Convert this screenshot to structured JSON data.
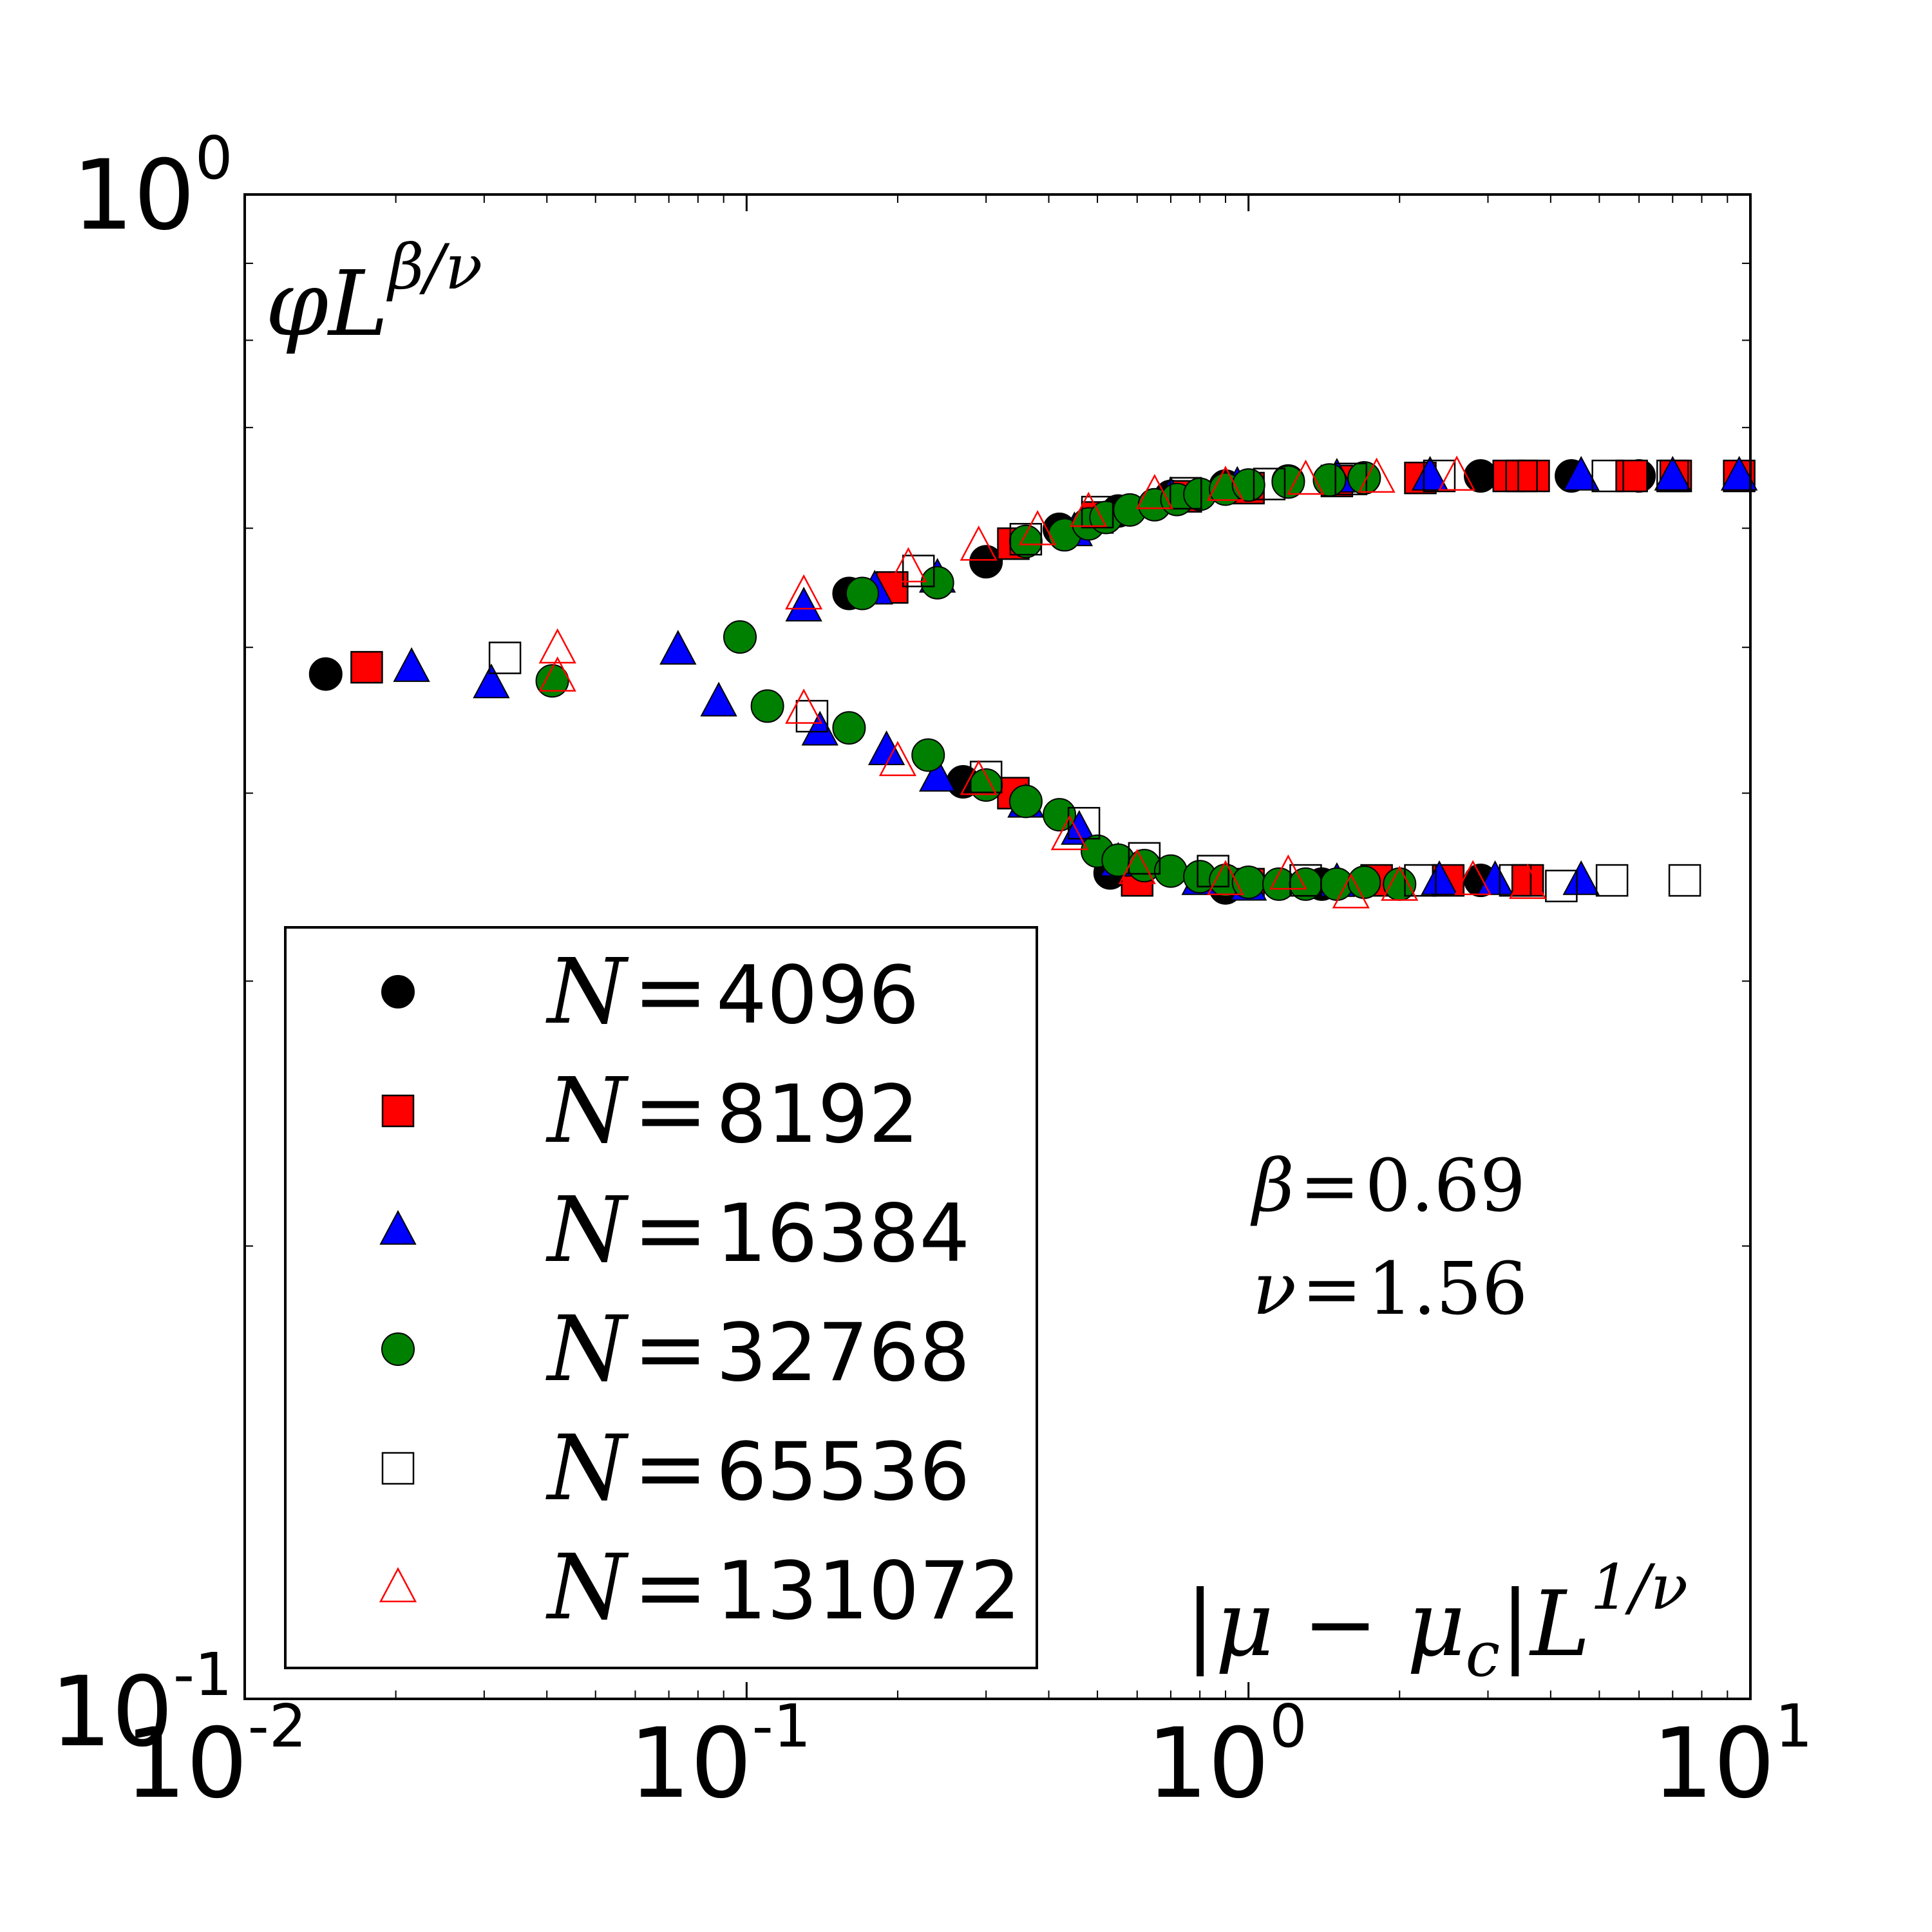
{
  "chart_data": {
    "type": "scatter",
    "xscale": "log",
    "yscale": "log",
    "xlim": [
      0.01,
      10
    ],
    "ylim": [
      0.1,
      1
    ],
    "ylabel": {
      "base": "φL",
      "sup": "β/ν"
    },
    "xlabel": {
      "text": "|μ − μ",
      "sub": "c",
      "post": "|L",
      "sup": "1/ν"
    },
    "xticks": [
      {
        "base": "10",
        "exp": "-2"
      },
      {
        "base": "10",
        "exp": "-1"
      },
      {
        "base": "10",
        "exp": "0"
      },
      {
        "base": "10",
        "exp": "1"
      }
    ],
    "yticks": [
      {
        "base": "10",
        "exp": "-1"
      },
      {
        "base": "10",
        "exp": "0"
      }
    ],
    "annotations": [
      {
        "lhs": "β",
        "eq": "=",
        "rhs": "0.69"
      },
      {
        "lhs": "ν",
        "eq": "=",
        "rhs": "1.56"
      }
    ],
    "legend": {
      "location": "lower-left"
    },
    "series": [
      {
        "name": "N=4096",
        "label_var": "N",
        "label_eq": "=",
        "label_num": "4096",
        "marker": "circle",
        "fill": "#000000",
        "stroke": "#000000",
        "points": [
          [
            0.0145,
            0.48
          ],
          [
            0.16,
            0.543
          ],
          [
            0.3,
            0.57
          ],
          [
            0.42,
            0.599
          ],
          [
            0.55,
            0.616
          ],
          [
            0.7,
            0.63
          ],
          [
            0.9,
            0.64
          ],
          [
            1.2,
            0.645
          ],
          [
            1.7,
            0.648
          ],
          [
            2.9,
            0.65
          ],
          [
            4.4,
            0.65
          ],
          [
            6.0,
            0.65
          ],
          [
            0.27,
            0.407
          ],
          [
            0.53,
            0.354
          ],
          [
            0.9,
            0.346
          ],
          [
            1.4,
            0.348
          ],
          [
            2.9,
            0.35
          ]
        ]
      },
      {
        "name": "N=8192",
        "label_var": "N",
        "label_eq": "=",
        "label_num": "8192",
        "marker": "square",
        "fill": "#ff0000",
        "stroke": "#000000",
        "points": [
          [
            0.0175,
            0.485
          ],
          [
            0.195,
            0.548
          ],
          [
            0.34,
            0.586
          ],
          [
            0.5,
            0.61
          ],
          [
            0.75,
            0.63
          ],
          [
            1.0,
            0.638
          ],
          [
            1.5,
            0.645
          ],
          [
            2.2,
            0.648
          ],
          [
            3.3,
            0.65
          ],
          [
            3.7,
            0.65
          ],
          [
            5.8,
            0.65
          ],
          [
            7.1,
            0.65
          ],
          [
            9.5,
            0.65
          ],
          [
            0.34,
            0.4
          ],
          [
            0.6,
            0.35
          ],
          [
            1.0,
            0.348
          ],
          [
            1.8,
            0.35
          ],
          [
            2.5,
            0.35
          ],
          [
            3.6,
            0.35
          ]
        ]
      },
      {
        "name": "N=16384",
        "label_var": "N",
        "label_eq": "=",
        "label_num": "16384",
        "marker": "triangle",
        "fill": "#0000ff",
        "stroke": "#000000",
        "points": [
          [
            0.0215,
            0.485
          ],
          [
            0.031,
            0.473
          ],
          [
            0.073,
            0.498
          ],
          [
            0.13,
            0.532
          ],
          [
            0.18,
            0.546
          ],
          [
            0.24,
            0.556
          ],
          [
            0.45,
            0.597
          ],
          [
            0.7,
            0.63
          ],
          [
            0.95,
            0.64
          ],
          [
            1.5,
            0.648
          ],
          [
            2.3,
            0.65
          ],
          [
            4.6,
            0.65
          ],
          [
            7.0,
            0.65
          ],
          [
            9.5,
            0.65
          ],
          [
            0.088,
            0.46
          ],
          [
            0.14,
            0.44
          ],
          [
            0.19,
            0.427
          ],
          [
            0.24,
            0.41
          ],
          [
            0.36,
            0.394
          ],
          [
            0.46,
            0.378
          ],
          [
            0.55,
            0.36
          ],
          [
            0.8,
            0.35
          ],
          [
            1.0,
            0.347
          ],
          [
            1.5,
            0.349
          ],
          [
            2.4,
            0.35
          ],
          [
            3.1,
            0.35
          ],
          [
            4.6,
            0.35
          ]
        ]
      },
      {
        "name": "N=32768",
        "label_var": "N",
        "label_eq": "=",
        "label_num": "32768",
        "marker": "circle",
        "fill": "#008000",
        "stroke": "#000000",
        "points": [
          [
            0.041,
            0.475
          ],
          [
            0.097,
            0.508
          ],
          [
            0.17,
            0.543
          ],
          [
            0.24,
            0.552
          ],
          [
            0.36,
            0.588
          ],
          [
            0.43,
            0.594
          ],
          [
            0.48,
            0.604
          ],
          [
            0.52,
            0.61
          ],
          [
            0.58,
            0.617
          ],
          [
            0.65,
            0.622
          ],
          [
            0.72,
            0.627
          ],
          [
            0.8,
            0.632
          ],
          [
            0.9,
            0.637
          ],
          [
            1.0,
            0.641
          ],
          [
            1.2,
            0.644
          ],
          [
            1.45,
            0.646
          ],
          [
            1.7,
            0.648
          ],
          [
            0.11,
            0.457
          ],
          [
            0.16,
            0.442
          ],
          [
            0.23,
            0.424
          ],
          [
            0.3,
            0.405
          ],
          [
            0.36,
            0.395
          ],
          [
            0.42,
            0.387
          ],
          [
            0.5,
            0.366
          ],
          [
            0.55,
            0.361
          ],
          [
            0.62,
            0.358
          ],
          [
            0.7,
            0.355
          ],
          [
            0.8,
            0.352
          ],
          [
            0.9,
            0.35
          ],
          [
            1.0,
            0.349
          ],
          [
            1.15,
            0.348
          ],
          [
            1.3,
            0.348
          ],
          [
            1.5,
            0.348
          ],
          [
            1.7,
            0.349
          ],
          [
            2.0,
            0.348
          ]
        ]
      },
      {
        "name": "N=65536",
        "label_var": "N",
        "label_eq": "=",
        "label_num": "65536",
        "marker": "square",
        "fill": "none",
        "stroke": "#000000",
        "points": [
          [
            0.033,
            0.492
          ],
          [
            0.22,
            0.562
          ],
          [
            0.36,
            0.59
          ],
          [
            0.5,
            0.615
          ],
          [
            0.75,
            0.633
          ],
          [
            1.1,
            0.642
          ],
          [
            1.6,
            0.647
          ],
          [
            2.4,
            0.65
          ],
          [
            3.5,
            0.65
          ],
          [
            5.2,
            0.65
          ],
          [
            7.0,
            0.65
          ],
          [
            0.135,
            0.45
          ],
          [
            0.3,
            0.41
          ],
          [
            0.47,
            0.382
          ],
          [
            0.62,
            0.362
          ],
          [
            0.85,
            0.355
          ],
          [
            1.3,
            0.35
          ],
          [
            2.2,
            0.35
          ],
          [
            3.4,
            0.35
          ],
          [
            4.2,
            0.347
          ],
          [
            5.3,
            0.35
          ],
          [
            7.4,
            0.35
          ]
        ]
      },
      {
        "name": "N=131072",
        "label_var": "N",
        "label_eq": "=",
        "label_num": "131072",
        "marker": "triangle-open",
        "fill": "none",
        "stroke": "#ff0000",
        "points": [
          [
            0.042,
            0.499
          ],
          [
            0.042,
            0.478
          ],
          [
            0.13,
            0.542
          ],
          [
            0.21,
            0.565
          ],
          [
            0.29,
            0.584
          ],
          [
            0.38,
            0.598
          ],
          [
            0.48,
            0.615
          ],
          [
            0.65,
            0.632
          ],
          [
            0.9,
            0.64
          ],
          [
            1.3,
            0.646
          ],
          [
            1.8,
            0.648
          ],
          [
            2.6,
            0.65
          ],
          [
            0.13,
            0.455
          ],
          [
            0.2,
            0.42
          ],
          [
            0.29,
            0.408
          ],
          [
            0.44,
            0.375
          ],
          [
            0.6,
            0.356
          ],
          [
            0.9,
            0.35
          ],
          [
            1.2,
            0.353
          ],
          [
            1.6,
            0.343
          ],
          [
            2.0,
            0.347
          ],
          [
            2.8,
            0.35
          ],
          [
            3.6,
            0.348
          ]
        ]
      }
    ]
  }
}
